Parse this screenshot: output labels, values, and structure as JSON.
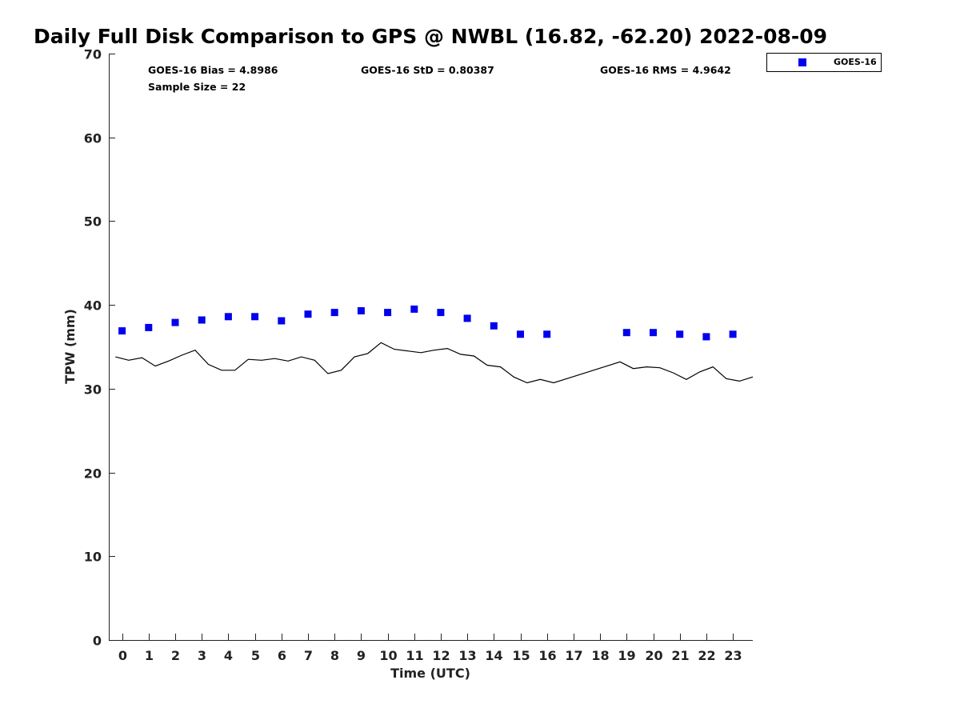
{
  "chart_data": {
    "type": "scatter",
    "title": "Daily Full Disk Comparison to GPS @ NWBL (16.82, -62.20) 2022-08-09",
    "xlabel": "Time (UTC)",
    "ylabel": "TPW (mm)",
    "xlim": [
      -0.5,
      23.75
    ],
    "ylim": [
      0,
      70
    ],
    "x_ticks": [
      "0",
      "1",
      "2",
      "3",
      "4",
      "5",
      "6",
      "7",
      "8",
      "9",
      "10",
      "11",
      "12",
      "13",
      "14",
      "15",
      "16",
      "17",
      "18",
      "19",
      "20",
      "21",
      "22",
      "23"
    ],
    "y_ticks": [
      "0",
      "10",
      "20",
      "30",
      "40",
      "50",
      "60",
      "70"
    ],
    "grid": false,
    "legend_position": "outside-top-right",
    "stats": {
      "bias": "GOES-16 Bias = 4.8986",
      "std": "GOES-16 StD = 0.80387",
      "rms": "GOES-16 RMS = 4.9642",
      "sample": "Sample Size = 22"
    },
    "series": [
      {
        "name": "GOES-16",
        "kind": "scatter",
        "marker": "square",
        "color": "#0000ee",
        "x": [
          0,
          1,
          2,
          3,
          4,
          5,
          6,
          7,
          8,
          9,
          10,
          11,
          12,
          13,
          14,
          15,
          16,
          19,
          20,
          21,
          22,
          23
        ],
        "y": [
          36.9,
          37.3,
          37.9,
          38.2,
          38.6,
          38.6,
          38.1,
          38.9,
          39.1,
          39.3,
          39.1,
          39.5,
          39.1,
          38.4,
          37.5,
          36.5,
          36.5,
          36.7,
          36.7,
          36.5,
          36.2,
          36.5
        ]
      },
      {
        "kind": "line",
        "color": "#000000",
        "x": [
          -0.25,
          0.25,
          0.75,
          1.25,
          1.75,
          2.25,
          2.75,
          3.25,
          3.75,
          4.25,
          4.75,
          5.25,
          5.75,
          6.25,
          6.75,
          7.25,
          7.75,
          8.25,
          8.75,
          9.25,
          9.75,
          10.25,
          10.75,
          11.25,
          11.75,
          12.25,
          12.75,
          13.25,
          13.75,
          14.25,
          14.75,
          15.25,
          15.75,
          16.25,
          16.75,
          17.25,
          17.75,
          18.25,
          18.75,
          19.25,
          19.75,
          20.25,
          20.75,
          21.25,
          21.75,
          22.25,
          22.75,
          23.25,
          23.75
        ],
        "y": [
          33.8,
          33.4,
          33.7,
          32.7,
          33.3,
          34.0,
          34.6,
          32.9,
          32.2,
          32.2,
          33.5,
          33.4,
          33.6,
          33.3,
          33.8,
          33.4,
          31.8,
          32.2,
          33.8,
          34.2,
          35.5,
          34.7,
          34.5,
          34.3,
          34.6,
          34.8,
          34.1,
          33.9,
          32.8,
          32.6,
          31.4,
          30.7,
          31.1,
          30.7,
          31.2,
          31.7,
          32.2,
          32.7,
          33.2,
          32.4,
          32.6,
          32.5,
          31.9,
          31.1,
          32.0,
          32.6,
          31.2,
          30.9,
          31.4
        ]
      }
    ]
  }
}
